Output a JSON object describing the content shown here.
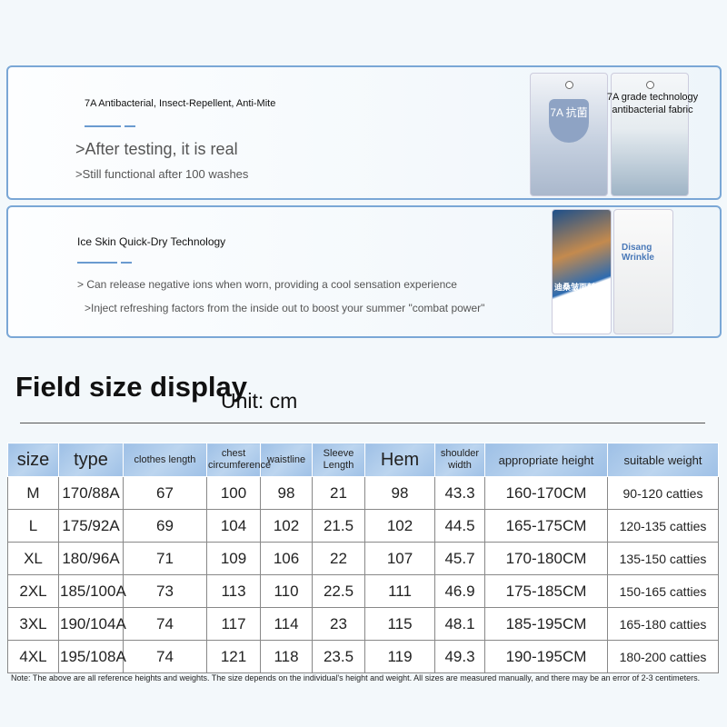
{
  "feature1": {
    "title": "7A Antibacterial, Insect-Repellent, Anti-Mite",
    "headline": ">After testing, it is real",
    "sub": ">Still functional after 100 washes",
    "tag_caption": "7A grade technology antibacterial fabric",
    "tag_badge": "7A 抗菌"
  },
  "feature2": {
    "title": "Ice Skin Quick-Dry Technology",
    "line1": "> Can release negative ions when worn, providing a cool sensation experience",
    "line2": ">Inject refreshing factors from the inside out to boost your summer \"combat power\"",
    "tag_text1": "迪桑皱面料",
    "tag_text2": "Disang Wrinkle"
  },
  "section": {
    "title": "Field size display",
    "unit": "Unit: cm"
  },
  "table": {
    "headers": [
      "size",
      "type",
      "clothes length",
      "chest circumference",
      "waistline",
      "Sleeve Length",
      "Hem",
      "shoulder width",
      "appropriate height",
      "suitable weight"
    ],
    "rows": [
      [
        "M",
        "170/88A",
        "67",
        "100",
        "98",
        "21",
        "98",
        "43.3",
        "160-170CM",
        "90-120 catties"
      ],
      [
        "L",
        "175/92A",
        "69",
        "104",
        "102",
        "21.5",
        "102",
        "44.5",
        "165-175CM",
        "120-135 catties"
      ],
      [
        "XL",
        "180/96A",
        "71",
        "109",
        "106",
        "22",
        "107",
        "45.7",
        "170-180CM",
        "135-150 catties"
      ],
      [
        "2XL",
        "185/100A",
        "73",
        "113",
        "110",
        "22.5",
        "111",
        "46.9",
        "175-185CM",
        "150-165 catties"
      ],
      [
        "3XL",
        "190/104A",
        "74",
        "117",
        "114",
        "23",
        "115",
        "48.1",
        "185-195CM",
        "165-180 catties"
      ],
      [
        "4XL",
        "195/108A",
        "74",
        "121",
        "118",
        "23.5",
        "119",
        "49.3",
        "190-195CM",
        "180-200 catties"
      ]
    ]
  },
  "note": "Note: The above are all reference heights and weights. The size depends on the individual's height and weight. All sizes are measured manually, and there may be an error of 2-3 centimeters."
}
